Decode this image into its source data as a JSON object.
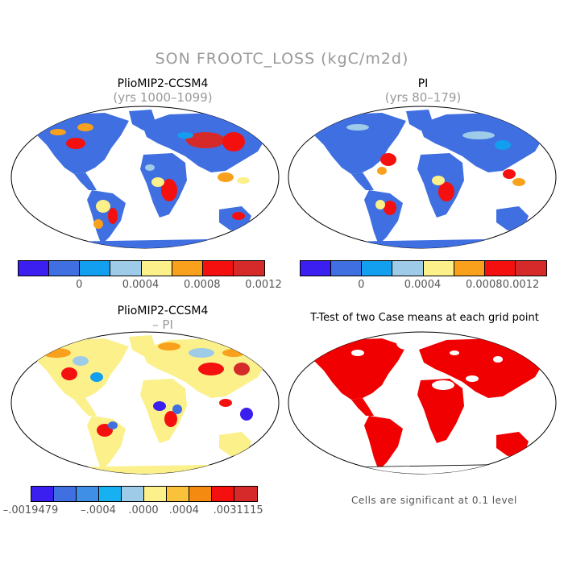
{
  "figure": {
    "title": "SON FROOTC_LOSS (kgC/m2d)"
  },
  "panels": {
    "top_left": {
      "title": "PlioMIP2-CCSM4",
      "subtitle": "(yrs 1000–1099)"
    },
    "top_right": {
      "title": "PI",
      "subtitle": "(yrs 80–179)"
    },
    "bottom_left": {
      "title": "PlioMIP2-CCSM4",
      "subtitle": "– PI"
    },
    "bottom_right": {
      "title": "T-Test of two Case means at each grid point",
      "note": "Cells are significant at 0.1 level"
    }
  },
  "colorbars": {
    "top": {
      "colors": [
        "#3a1ff0",
        "#3f6fe0",
        "#139ff0",
        "#9ecbe8",
        "#fbf08a",
        "#f9a01c",
        "#f51010",
        "#d62a2a"
      ],
      "labels": [
        "0",
        "0.0004",
        "0.0008",
        "0.0012"
      ]
    },
    "bottom": {
      "colors": [
        "#3a1ff0",
        "#3f6fe0",
        "#3f8fe6",
        "#17b0f0",
        "#9ecbe8",
        "#fbf08a",
        "#f9c23a",
        "#f58a10",
        "#f51010",
        "#d62a2a"
      ],
      "labels": [
        "–.0019479",
        "–.0004",
        ".0000",
        ".0004",
        ".0031115"
      ]
    }
  },
  "map_colors": {
    "ocean": "#ffffff",
    "tl_base": "#3f6fe0",
    "tr_base": "#3f6fe0",
    "diff_base": "#fbf08a",
    "signif": "#f00000",
    "hot": "#f51010",
    "dark_hot": "#d62a2a",
    "orange": "#f9a01c",
    "yellow": "#fbf08a",
    "light_blue": "#9ecbe8",
    "blue": "#139ff0",
    "violet": "#3a1ff0"
  }
}
